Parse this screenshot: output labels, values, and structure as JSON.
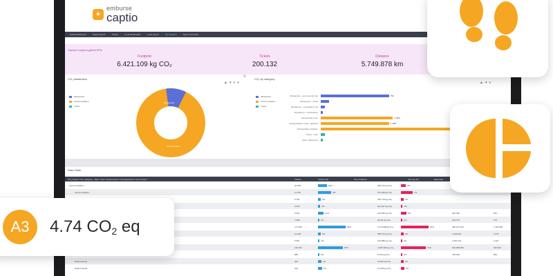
{
  "brand": {
    "small": "emburse",
    "big": "captio",
    "accent": "#f5a623"
  },
  "nav": [
    "Global dashboard",
    "Global reports",
    "Tickets",
    "Local dashboards",
    "Local reports",
    "My Footprint",
    "Report scheduler"
  ],
  "kpi": {
    "title": "Carbon footprint global KPIs",
    "items": [
      {
        "label": "Footprint",
        "value": "6.421.109 kg CO₂"
      },
      {
        "label": "Tickets",
        "value": "200.132"
      },
      {
        "label": "Distance",
        "value": "5.749.878 km"
      }
    ]
  },
  "donut": {
    "title": "CO₂ distribution",
    "legend": [
      "Allowances",
      "Accommodation",
      "Travel"
    ],
    "colors": [
      "#5b6fd6",
      "#f5a623",
      "#2fb7a8"
    ],
    "slice_labels": [
      "Allowances",
      "Transportation"
    ]
  },
  "bars": {
    "title": "CO₂ by category",
    "legend": [
      "Allowances",
      "Accommodation",
      "Travel"
    ],
    "categories": [
      "Allowances - per personal rate",
      "Allowances - meals",
      "Allowances - Consultancy tax",
      "Allowances - Consultancy",
      "Transportation taxi",
      "Transportation rental - gasoline",
      "Transportation airplane",
      "Travel - hotel",
      "Hotel - Barcelona"
    ],
    "values": [
      0.34,
      0.04,
      0.02,
      0.01,
      0.36,
      0.34,
      1.0,
      0.02,
      0.01
    ],
    "value_labels": [
      "750",
      "",
      "",
      "",
      "1.20M",
      "1.10M",
      "",
      "",
      ""
    ],
    "colors": [
      "#5b6fd6",
      "#5b6fd6",
      "#5b6fd6",
      "#5b6fd6",
      "#f5a623",
      "#f5a623",
      "#f5a623",
      "#2fb7a8",
      "#2fb7a8"
    ]
  },
  "table": {
    "title": "Data Table",
    "header": [
      "CO₂ Group / CO₂ Category - Start / User / Environment / Company/Cost / Cost Center *",
      "Tickets",
      "Tickets (%)",
      "CO₂ Footprint",
      "CO₂ Kg (%)",
      "Expenses"
    ],
    "rows": [
      {
        "name": "Accommodation",
        "tickets": "22.556",
        "pct": 0.32,
        "pctl": "10%",
        "co2": "450.116 kg CO₂",
        "kgp": 0.18,
        "kgpl": "6%",
        "exp": "",
        "last": ""
      },
      {
        "name": "Accommodation",
        "tickets": "17.367",
        "pct": 0.48,
        "pctl": "9%",
        "co2": "372.338 kg CO₂",
        "kgp": 0.42,
        "kgpl": "7%",
        "exp": "",
        "last": ""
      },
      {
        "name": "",
        "tickets": "5.751",
        "pct": 0.1,
        "pctl": "3%",
        "co2": "185.778 kg CO₂",
        "kgp": 0.1,
        "kgpl": "2%",
        "exp": "",
        "last": ""
      },
      {
        "name": "",
        "tickets": "4.316",
        "pct": 0.08,
        "pctl": "2%",
        "co2": "101.227 kg CO₂",
        "kgp": 0.06,
        "kgpl": "1%",
        "exp": "",
        "last": ""
      },
      {
        "name": "",
        "tickets": "5.361",
        "pct": 0.2,
        "pctl": "12%",
        "co2": "215.450 kg CO₂",
        "kgp": 0.2,
        "kgpl": "6%",
        "exp": "632.338",
        "last": "832"
      },
      {
        "name": "",
        "tickets": "1.380",
        "pct": 0.05,
        "pctl": "1%",
        "co2": "46.111 kg CO₂",
        "kgp": 0.03,
        "kgpl": "1%",
        "exp": "153.175",
        "last": "176"
      },
      {
        "name": "",
        "tickets": "172.318",
        "pct": 1.0,
        "pctl": "86%",
        "co2": "5.170.998 kg CO₂",
        "kgp": 1.0,
        "kgpl": "81%",
        "exp": "466.167.223",
        "last": "1.150.000"
      },
      {
        "name": "",
        "tickets": "10.228",
        "pct": 0.1,
        "pctl": "5%",
        "co2": "368.116 kg CO₂",
        "kgp": 0.1,
        "kgpl": "6%",
        "exp": "1.696.213",
        "last": "2.375"
      },
      {
        "name": "",
        "tickets": "5.391",
        "pct": 0.06,
        "pctl": "3%",
        "co2": "140.889 kg CO₂",
        "kgp": 0.05,
        "kgpl": "2%",
        "exp": "1.081.213",
        "last": "1.321"
      },
      {
        "name": "",
        "tickets": "130.184",
        "pct": 0.9,
        "pctl": "65%",
        "co2": "4.465.300 kg CO₂",
        "kgp": 0.9,
        "kgpl": "70%",
        "exp": "392.065.083",
        "last": "920.000"
      },
      {
        "name": "Taxi",
        "tickets": "985",
        "pct": 0.02,
        "pctl": "0%",
        "co2": "8.720 kg CO₂",
        "kgp": 0.02,
        "kgpl": "0%",
        "exp": "728.018",
        "last": "856"
      },
      {
        "name": "Road Fuel As",
        "tickets": "453",
        "pct": 0.12,
        "pctl": "1%",
        "co2": "15.510 kg CO₂",
        "kgp": 0.1,
        "kgpl": "0%",
        "exp": "",
        "last": ""
      },
      {
        "name": "Road Fuel Bo",
        "tickets": "322",
        "pct": 0.14,
        "pctl": "1%",
        "co2": "13.200 kg CO₂",
        "kgp": 0.12,
        "kgpl": "0%",
        "exp": "",
        "last": ""
      }
    ]
  },
  "overlay": {
    "badge": "A3",
    "value": "4.74 CO",
    "value_sub": "2",
    "value_unit": " eq"
  }
}
